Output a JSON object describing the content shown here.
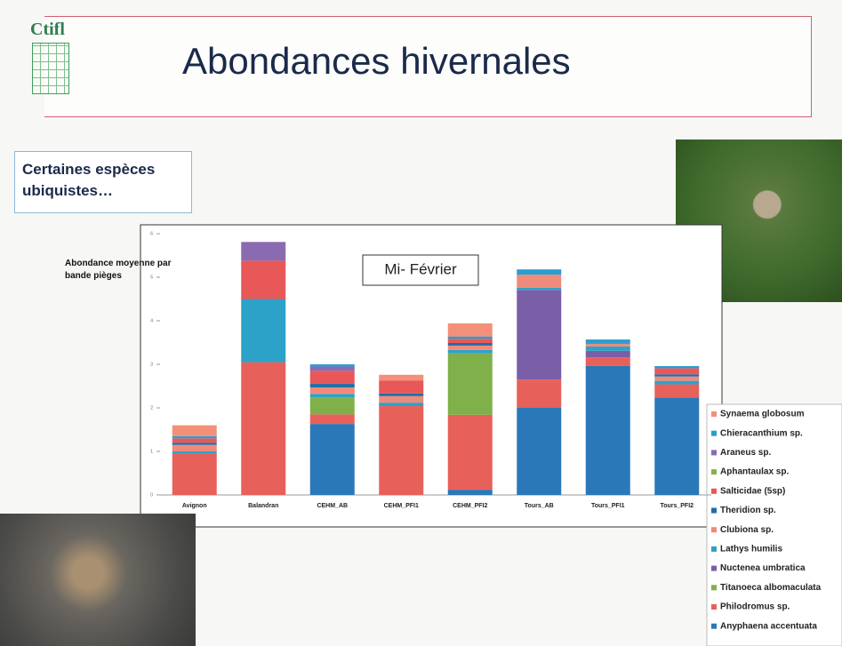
{
  "header": {
    "logo": "Ctifl",
    "title": "Abondances hivernales"
  },
  "callout": "Certaines espèces ubiquistes…",
  "chart_data": {
    "type": "stacked-bar",
    "ylabel": "Abondance moyenne par bande pièges",
    "annotation": "Mi- Février",
    "categories": [
      "Avignon",
      "Balandran",
      "CEHM_AB",
      "CEHM_PFI1",
      "CEHM_PFI2",
      "Tours_AB",
      "Tours_PFI1",
      "Tours_PFI2"
    ],
    "ylim": [
      0,
      6
    ],
    "yticks": [
      0,
      1,
      2,
      3,
      4,
      5,
      6
    ],
    "series": [
      {
        "name": "Anyphaena accentuata",
        "color": "#2a78b8",
        "values": [
          0,
          0,
          1.63,
          0,
          0.12,
          2.0,
          2.96,
          2.24
        ]
      },
      {
        "name": "Philodromus sp.",
        "color": "#e8605a",
        "values": [
          0.95,
          3.05,
          0.22,
          2.04,
          1.72,
          0.65,
          0.2,
          0.3
        ]
      },
      {
        "name": "Titanoeca albomaculata",
        "color": "#80b04a",
        "values": [
          0,
          0,
          0.39,
          0,
          1.41,
          0,
          0,
          0
        ]
      },
      {
        "name": "Nuctenea umbratica",
        "color": "#7b5ea8",
        "values": [
          0,
          0,
          0,
          0,
          0,
          2.06,
          0.15,
          0
        ]
      },
      {
        "name": "Lathys humilis",
        "color": "#2ca2c8",
        "values": [
          0.05,
          1.45,
          0.08,
          0.08,
          0.08,
          0.05,
          0.1,
          0.08
        ]
      },
      {
        "name": "Clubiona sp.",
        "color": "#f08a7a",
        "values": [
          0.15,
          0,
          0.15,
          0.15,
          0.1,
          0.3,
          0.06,
          0.1
        ]
      },
      {
        "name": "Theridion sp.",
        "color": "#1f6ea8",
        "values": [
          0.05,
          0,
          0.08,
          0.06,
          0.06,
          0,
          0,
          0.05
        ]
      },
      {
        "name": "Salticidae (5sp)",
        "color": "#e85858",
        "values": [
          0.1,
          0.88,
          0.3,
          0.3,
          0.1,
          0,
          0,
          0.14
        ]
      },
      {
        "name": "Aphantaulax sp.",
        "color": "#88b050",
        "values": [
          0,
          0,
          0,
          0,
          0,
          0,
          0,
          0
        ]
      },
      {
        "name": "Araneus sp.",
        "color": "#8a6ab0",
        "values": [
          0,
          0.43,
          0.1,
          0,
          0,
          0,
          0,
          0
        ]
      },
      {
        "name": "Chieracanthium sp.",
        "color": "#2a9ed0",
        "values": [
          0.05,
          0,
          0.05,
          0,
          0.05,
          0.12,
          0.1,
          0.05
        ]
      },
      {
        "name": "Synaema globosum",
        "color": "#f4907a",
        "values": [
          0.25,
          0,
          0,
          0.13,
          0.3,
          0,
          0,
          0
        ]
      }
    ]
  }
}
